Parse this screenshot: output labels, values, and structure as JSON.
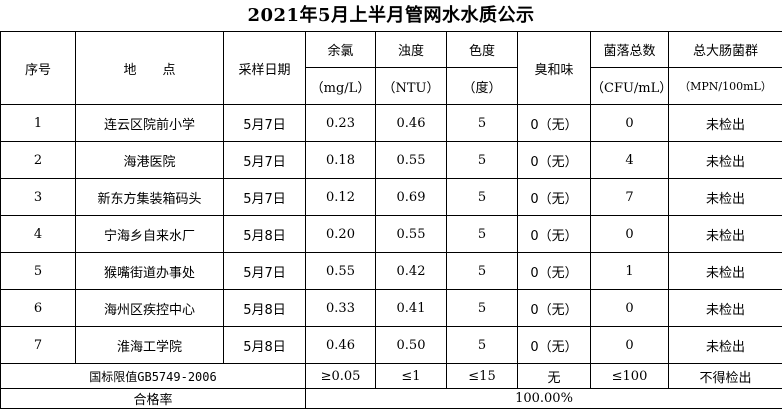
{
  "title": "2021年5月上半月管网水水质公示",
  "headers": {
    "index": "序号",
    "location": "地　　点",
    "date": "采样日期",
    "chlorine": "余氯",
    "chlorine_unit": "（mg/L）",
    "turbidity": "浊度",
    "turbidity_unit": "（NTU）",
    "color": "色度",
    "color_unit": "（度）",
    "odor": "臭和味",
    "colonies": "菌落总数",
    "colonies_unit": "（CFU/mL）",
    "coliform": "总大肠菌群",
    "coliform_unit": "（MPN/100mL）"
  },
  "rows": [
    {
      "index": "1",
      "location": "连云区院前小学",
      "date": "5月7日",
      "chlorine": "0.23",
      "turbidity": "0.46",
      "color": "5",
      "odor": "0（无）",
      "colonies": "0",
      "coliform": "未检出"
    },
    {
      "index": "2",
      "location": "海港医院",
      "date": "5月7日",
      "chlorine": "0.18",
      "turbidity": "0.55",
      "color": "5",
      "odor": "0（无）",
      "colonies": "4",
      "coliform": "未检出"
    },
    {
      "index": "3",
      "location": "新东方集装箱码头",
      "date": "5月7日",
      "chlorine": "0.12",
      "turbidity": "0.69",
      "color": "5",
      "odor": "0（无）",
      "colonies": "7",
      "coliform": "未检出"
    },
    {
      "index": "4",
      "location": "宁海乡自来水厂",
      "date": "5月8日",
      "chlorine": "0.20",
      "turbidity": "0.55",
      "color": "5",
      "odor": "0（无）",
      "colonies": "0",
      "coliform": "未检出"
    },
    {
      "index": "5",
      "location": "猴嘴街道办事处",
      "date": "5月7日",
      "chlorine": "0.55",
      "turbidity": "0.42",
      "color": "5",
      "odor": "0（无）",
      "colonies": "1",
      "coliform": "未检出"
    },
    {
      "index": "6",
      "location": "海州区疾控中心",
      "date": "5月8日",
      "chlorine": "0.33",
      "turbidity": "0.41",
      "color": "5",
      "odor": "0（无）",
      "colonies": "0",
      "coliform": "未检出"
    },
    {
      "index": "7",
      "location": "淮海工学院",
      "date": "5月8日",
      "chlorine": "0.46",
      "turbidity": "0.50",
      "color": "5",
      "odor": "0（无）",
      "colonies": "0",
      "coliform": "未检出"
    }
  ],
  "limits": {
    "label": "国标限值GB5749-2006",
    "chlorine": "≥0.05",
    "turbidity": "≤1",
    "color": "≤15",
    "odor": "无",
    "colonies": "≤100",
    "coliform": "不得检出"
  },
  "pass_rate": {
    "label": "合格率",
    "value": "100.00%"
  }
}
